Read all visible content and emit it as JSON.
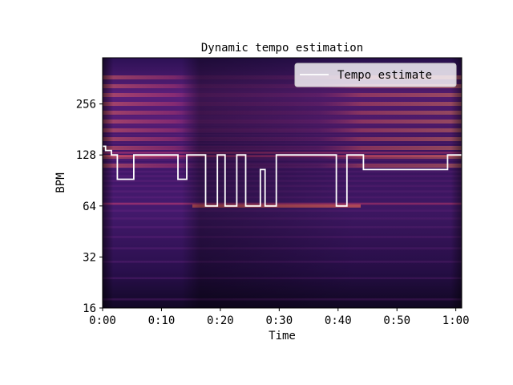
{
  "chart_data": {
    "type": "heatmap",
    "title": "Dynamic tempo estimation",
    "xlabel": "Time",
    "ylabel": "BPM",
    "y_scale": "log2",
    "ylim": [
      16,
      512
    ],
    "xlim": [
      0,
      61
    ],
    "x_ticks": [
      {
        "value": 0,
        "label": "0:00"
      },
      {
        "value": 10,
        "label": "0:10"
      },
      {
        "value": 20,
        "label": "0:20"
      },
      {
        "value": 30,
        "label": "0:30"
      },
      {
        "value": 40,
        "label": "0:40"
      },
      {
        "value": 50,
        "label": "0:50"
      },
      {
        "value": 60,
        "label": "1:00"
      }
    ],
    "y_ticks": [
      {
        "value": 16,
        "label": "16"
      },
      {
        "value": 32,
        "label": "32"
      },
      {
        "value": 64,
        "label": "64"
      },
      {
        "value": 128,
        "label": "128"
      },
      {
        "value": 256,
        "label": "256"
      }
    ],
    "colormap": "magma",
    "legend": {
      "position": "upper-right",
      "entries": [
        "Tempo estimate"
      ]
    },
    "series": [
      {
        "name": "Tempo estimate",
        "color": "#ffffff",
        "type": "step",
        "points": [
          [
            0,
            144
          ],
          [
            0.5,
            136
          ],
          [
            1.5,
            128
          ],
          [
            2.5,
            92
          ],
          [
            5.3,
            128
          ],
          [
            12.8,
            92
          ],
          [
            14.3,
            128
          ],
          [
            17.5,
            64
          ],
          [
            19.5,
            128
          ],
          [
            20.8,
            64
          ],
          [
            22.8,
            128
          ],
          [
            24.3,
            64
          ],
          [
            26.8,
            105
          ],
          [
            27.6,
            64
          ],
          [
            29.5,
            128
          ],
          [
            39.7,
            64
          ],
          [
            41.5,
            128
          ],
          [
            44.3,
            105
          ],
          [
            58.6,
            128
          ],
          [
            61,
            128
          ]
        ]
      }
    ]
  }
}
